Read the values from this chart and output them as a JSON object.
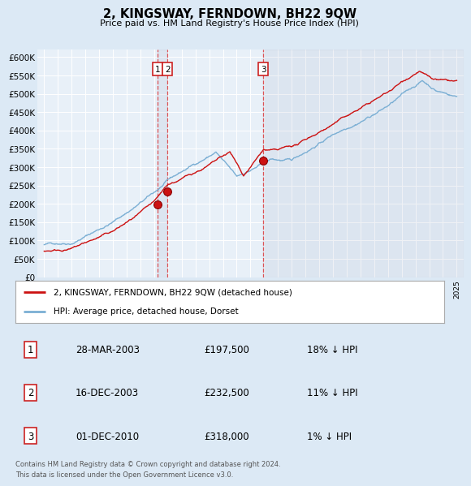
{
  "title": "2, KINGSWAY, FERNDOWN, BH22 9QW",
  "subtitle": "Price paid vs. HM Land Registry's House Price Index (HPI)",
  "bg_color": "#dce9f5",
  "plot_bg_color": "#e8f0f8",
  "legend_label_red": "2, KINGSWAY, FERNDOWN, BH22 9QW (detached house)",
  "legend_label_blue": "HPI: Average price, detached house, Dorset",
  "footer": "Contains HM Land Registry data © Crown copyright and database right 2024.\nThis data is licensed under the Open Government Licence v3.0.",
  "transactions": [
    {
      "num": 1,
      "date": "28-MAR-2003",
      "price": "£197,500",
      "note": "18% ↓ HPI",
      "year": 2003.24
    },
    {
      "num": 2,
      "date": "16-DEC-2003",
      "price": "£232,500",
      "note": "11% ↓ HPI",
      "year": 2003.96
    },
    {
      "num": 3,
      "date": "01-DEC-2010",
      "price": "£318,000",
      "note": "1% ↓ HPI",
      "year": 2010.92
    }
  ],
  "transaction_prices": [
    197500,
    232500,
    318000
  ],
  "ylim": [
    0,
    620000
  ],
  "yticks": [
    0,
    50000,
    100000,
    150000,
    200000,
    250000,
    300000,
    350000,
    400000,
    450000,
    500000,
    550000,
    600000
  ],
  "ytick_labels": [
    "£0",
    "£50K",
    "£100K",
    "£150K",
    "£200K",
    "£250K",
    "£300K",
    "£350K",
    "£400K",
    "£450K",
    "£500K",
    "£550K",
    "£600K"
  ],
  "xlim_start": 1994.5,
  "xlim_end": 2025.5
}
